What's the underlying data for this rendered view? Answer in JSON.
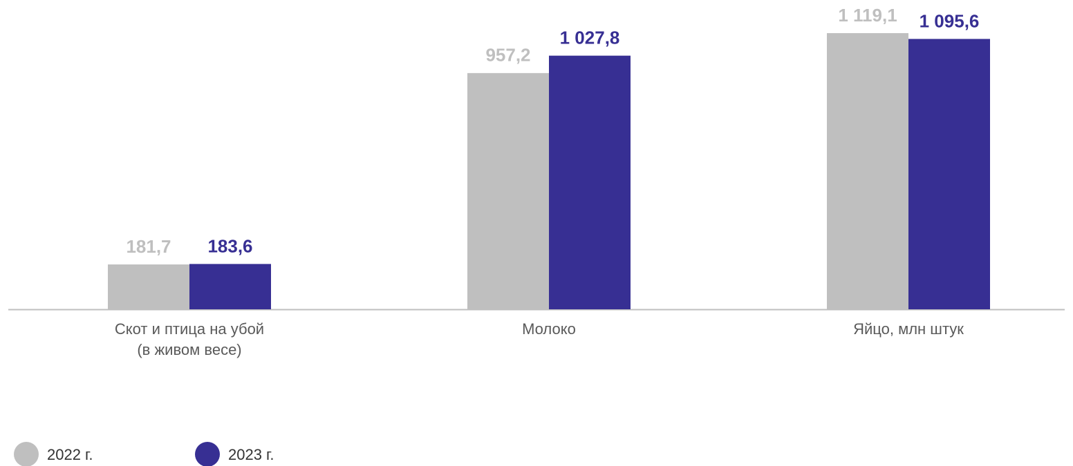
{
  "chart_data": {
    "type": "bar",
    "categories": [
      "Скот и птица на убой\n(в живом весе)",
      "Молоко",
      "Яйцо, млн штук"
    ],
    "series": [
      {
        "name": "2022 г.",
        "color": "#bfbfbf",
        "label_color": "#bfbfbf",
        "values": [
          181.7,
          957.2,
          1119.1
        ],
        "value_labels": [
          "181,7",
          "957,2",
          "1 119,1"
        ]
      },
      {
        "name": "2023 г.",
        "color": "#372f93",
        "label_color": "#372f93",
        "values": [
          183.6,
          1027.8,
          1095.6
        ],
        "value_labels": [
          "183,6",
          "1 027,8",
          "1 095,6"
        ]
      }
    ],
    "legend": "bottom-left"
  }
}
